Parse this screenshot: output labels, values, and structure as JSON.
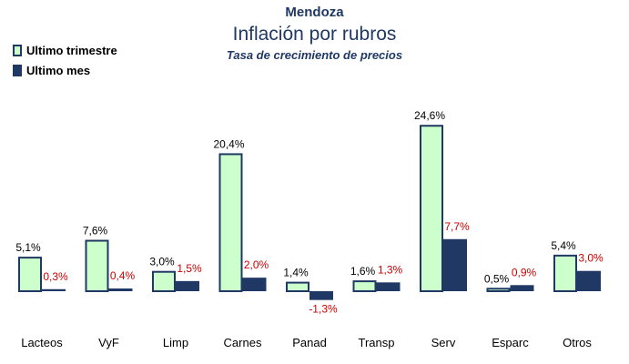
{
  "chart_data": {
    "type": "bar",
    "region": "Mendoza",
    "title": "Inflación por rubros",
    "subtitle": "Tasa de crecimiento de precios",
    "categories": [
      "Lacteos",
      "VyF",
      "Limp",
      "Carnes",
      "Panad",
      "Transp",
      "Serv",
      "Esparc",
      "Otros"
    ],
    "series": [
      {
        "name": "Ultimo trimestre",
        "values": [
          5.1,
          7.6,
          3.0,
          20.4,
          1.4,
          1.6,
          24.6,
          0.5,
          5.4
        ],
        "labels": [
          "5,1%",
          "7,6%",
          "3,0%",
          "20,4%",
          "1,4%",
          "1,6%",
          "24,6%",
          "0,5%",
          "5,4%"
        ],
        "color": "#ccffcc",
        "border": "#1f3864",
        "label_color": "#000000"
      },
      {
        "name": "Ultimo mes",
        "values": [
          0.3,
          0.4,
          1.5,
          2.0,
          -1.3,
          1.3,
          7.7,
          0.9,
          3.0
        ],
        "labels": [
          "0,3%",
          "0,4%",
          "1,5%",
          "2,0%",
          "-1,3%",
          "1,3%",
          "7,7%",
          "0,9%",
          "3,0%"
        ],
        "color": "#1f3864",
        "border": "#1f3864",
        "label_color": "#cc0000"
      }
    ],
    "ylim": [
      -1.5,
      25
    ],
    "grid": false,
    "legend_position": "top-left"
  }
}
